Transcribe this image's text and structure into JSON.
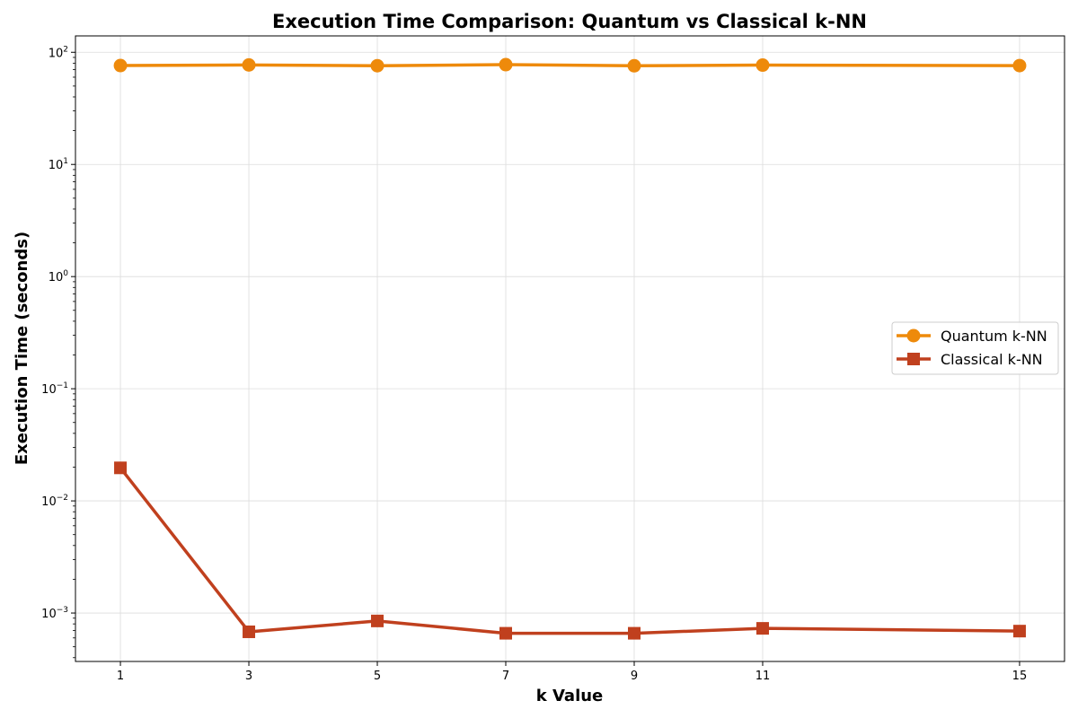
{
  "chart_data": {
    "type": "line",
    "title": "Execution Time Comparison: Quantum vs Classical k-NN",
    "xlabel": "k Value",
    "ylabel": "Execution Time (seconds)",
    "yscale": "log",
    "ylim": [
      0.00037,
      140
    ],
    "xlim": [
      0.3,
      15.7
    ],
    "grid": true,
    "legend_position": "center-right",
    "x": [
      1,
      3,
      5,
      7,
      9,
      11,
      15
    ],
    "x_tick_labels": [
      "1",
      "3",
      "5",
      "7",
      "9",
      "11",
      "15"
    ],
    "y_ticks": [
      {
        "base": "10",
        "exp": "−3",
        "value": 0.001
      },
      {
        "base": "10",
        "exp": "−2",
        "value": 0.01
      },
      {
        "base": "10",
        "exp": "−1",
        "value": 0.1
      },
      {
        "base": "10",
        "exp": "0",
        "value": 1
      },
      {
        "base": "10",
        "exp": "1",
        "value": 10
      },
      {
        "base": "10",
        "exp": "2",
        "value": 100
      }
    ],
    "series": [
      {
        "name": "Quantum k-NN",
        "color": "#EE8A0B",
        "marker": "circle",
        "values": [
          76.2,
          77.1,
          75.9,
          77.6,
          75.8,
          76.9,
          76.1
        ]
      },
      {
        "name": "Classical k-NN",
        "color": "#C0401E",
        "marker": "square",
        "values": [
          0.0197,
          0.00068,
          0.00085,
          0.00066,
          0.00066,
          0.00073,
          0.00069
        ]
      }
    ]
  }
}
